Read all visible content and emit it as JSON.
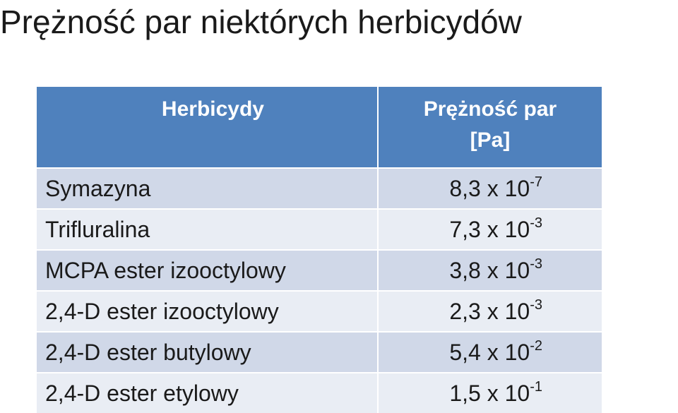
{
  "title": "Prężność par niektórych herbicydów",
  "table": {
    "header_col1": "Herbicydy",
    "header_col2_line1": "Prężność par",
    "header_col2_line2": "[Pa]",
    "rows": [
      {
        "name": "Symazyna",
        "mantissa": "8,3 x 10",
        "exponent": "-7"
      },
      {
        "name": "Trifluralina",
        "mantissa": "7,3 x 10",
        "exponent": "-3"
      },
      {
        "name": "MCPA ester izooctylowy",
        "mantissa": "3,8 x 10",
        "exponent": "-3"
      },
      {
        "name": "2,4-D ester izooctylowy",
        "mantissa": "2,3 x 10",
        "exponent": "-3"
      },
      {
        "name": "2,4-D ester butylowy",
        "mantissa": "5,4 x 10",
        "exponent": "-2"
      },
      {
        "name": "2,4-D ester etylowy",
        "mantissa": "1,5 x 10",
        "exponent": "-1"
      }
    ]
  },
  "colors": {
    "header_bg": "#4f81bd",
    "row_odd_bg": "#d0d8e8",
    "row_even_bg": "#e9edf4"
  }
}
